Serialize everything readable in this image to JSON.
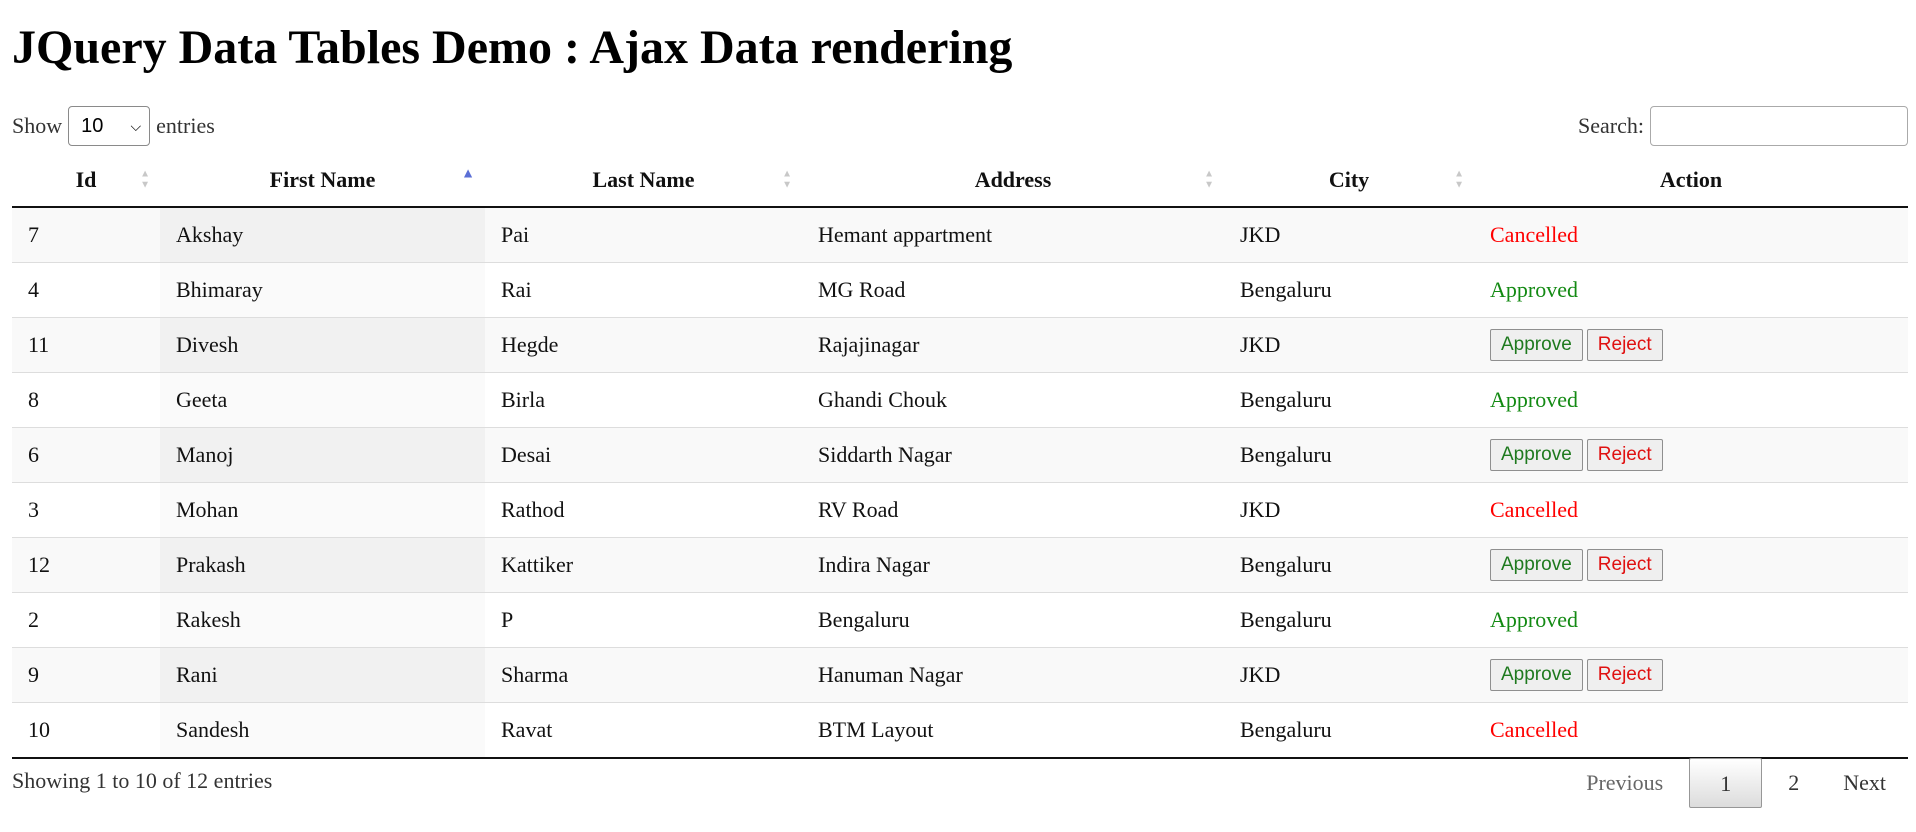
{
  "header": {
    "title": "JQuery Data Tables Demo : Ajax Data rendering"
  },
  "length_control": {
    "show_label": "Show",
    "selected": "10",
    "entries_label": "entries"
  },
  "search": {
    "label": "Search:",
    "value": ""
  },
  "table": {
    "columns": [
      "Id",
      "First Name",
      "Last Name",
      "Address",
      "City",
      "Action"
    ],
    "sorted_column": "First Name",
    "sort_direction": "ascending",
    "rows": [
      {
        "id": "7",
        "first": "Akshay",
        "last": "Pai",
        "address": "Hemant appartment",
        "city": "JKD",
        "status": "Cancelled"
      },
      {
        "id": "4",
        "first": "Bhimaray",
        "last": "Rai",
        "address": "MG Road",
        "city": "Bengaluru",
        "status": "Approved"
      },
      {
        "id": "11",
        "first": "Divesh",
        "last": "Hegde",
        "address": "Rajajinagar",
        "city": "JKD",
        "status": "buttons"
      },
      {
        "id": "8",
        "first": "Geeta",
        "last": "Birla",
        "address": "Ghandi Chouk",
        "city": "Bengaluru",
        "status": "Approved"
      },
      {
        "id": "6",
        "first": "Manoj",
        "last": "Desai",
        "address": "Siddarth Nagar",
        "city": "Bengaluru",
        "status": "buttons"
      },
      {
        "id": "3",
        "first": "Mohan",
        "last": "Rathod",
        "address": "RV Road",
        "city": "JKD",
        "status": "Cancelled"
      },
      {
        "id": "12",
        "first": "Prakash",
        "last": "Kattiker",
        "address": "Indira Nagar",
        "city": "Bengaluru",
        "status": "buttons"
      },
      {
        "id": "2",
        "first": "Rakesh",
        "last": "P",
        "address": "Bengaluru",
        "city": "Bengaluru",
        "status": "Approved"
      },
      {
        "id": "9",
        "first": "Rani",
        "last": "Sharma",
        "address": "Hanuman Nagar",
        "city": "JKD",
        "status": "buttons"
      },
      {
        "id": "10",
        "first": "Sandesh",
        "last": "Ravat",
        "address": "BTM Layout",
        "city": "Bengaluru",
        "status": "Cancelled"
      }
    ],
    "approve_label": "Approve",
    "reject_label": "Reject"
  },
  "footer": {
    "info": "Showing 1 to 10 of 12 entries",
    "previous": "Previous",
    "pages": [
      "1",
      "2"
    ],
    "current_page": "1",
    "next": "Next"
  },
  "colors": {
    "cancelled": "#ff0000",
    "approved": "#138a13",
    "sort_active": "#5b6fd6"
  }
}
